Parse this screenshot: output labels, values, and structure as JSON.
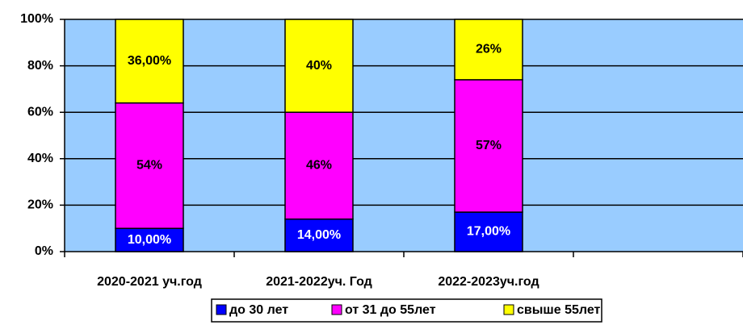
{
  "chart_data": {
    "type": "stacked_bar",
    "categories": [
      "2020-2021 уч.год",
      "2021-2022уч. Год",
      "2022-2023уч.год",
      null
    ],
    "series": [
      {
        "name": "до 30 лет",
        "color": "#0000ff",
        "values": [
          10,
          14,
          17,
          null
        ],
        "value_labels": [
          "10,00%",
          "14,00%",
          "17,00%",
          null
        ]
      },
      {
        "name": "от 31 до 55лет",
        "color": "#ff00ff",
        "values": [
          54,
          46,
          57,
          null
        ],
        "value_labels": [
          "54%",
          "46%",
          "57%",
          null
        ]
      },
      {
        "name": "свыше 55лет",
        "color": "#ffff00",
        "values": [
          36,
          40,
          26,
          null
        ],
        "value_labels": [
          "36,00%",
          "40%",
          "26%",
          null
        ]
      }
    ],
    "ylim": [
      0,
      100
    ],
    "yticks": [
      {
        "value": 0,
        "label": "0%"
      },
      {
        "value": 20,
        "label": "20%"
      },
      {
        "value": 40,
        "label": "40%"
      },
      {
        "value": 60,
        "label": "60%"
      },
      {
        "value": 80,
        "label": "80%"
      },
      {
        "value": 100,
        "label": "100%"
      }
    ],
    "grid": true,
    "plot_background": "#99ccff",
    "legend": "bottom"
  }
}
